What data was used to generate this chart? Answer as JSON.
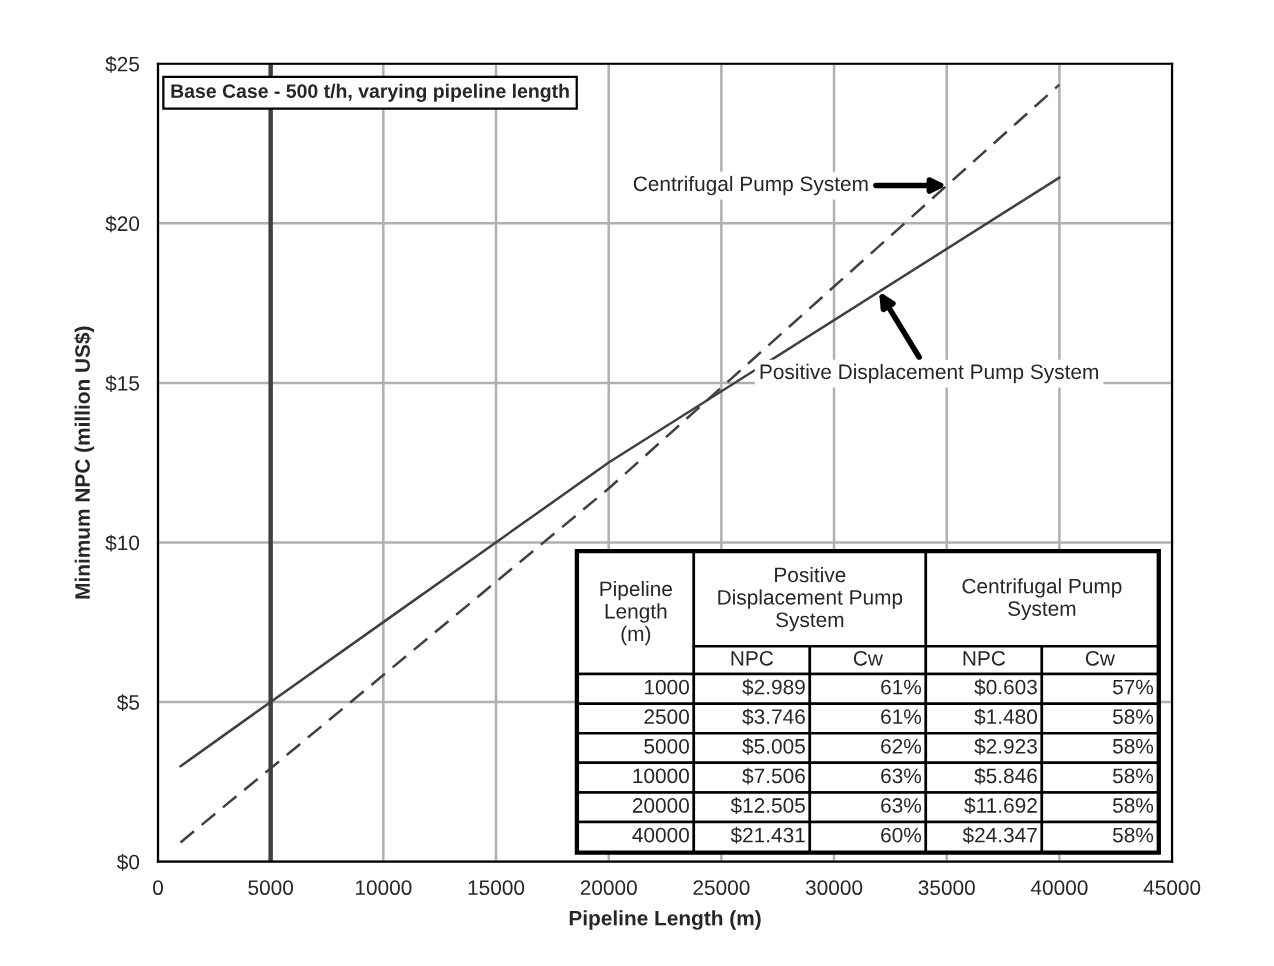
{
  "chart_data": {
    "type": "line",
    "xlabel": "Pipeline Length (m)",
    "ylabel": "Minimum NPC (million US$)",
    "x": [
      1000,
      2500,
      5000,
      10000,
      20000,
      40000
    ],
    "series": [
      {
        "name": "Positive Displacement Pump System",
        "color": "#404040",
        "line_style": "solid",
        "values": [
          2.989,
          3.746,
          5.005,
          7.506,
          12.505,
          21.431
        ]
      },
      {
        "name": "Centrifugal Pump System",
        "color": "#404040",
        "line_style": "dashed",
        "values": [
          0.603,
          1.48,
          2.923,
          5.846,
          11.692,
          24.347
        ]
      }
    ],
    "xlim": [
      0,
      45000
    ],
    "xticks": [
      0,
      5000,
      10000,
      15000,
      20000,
      25000,
      30000,
      35000,
      40000,
      45000
    ],
    "ylim": [
      0,
      25
    ],
    "yticks": [
      {
        "value": 0,
        "label": "$0"
      },
      {
        "value": 5,
        "label": "$5"
      },
      {
        "value": 10,
        "label": "$10"
      },
      {
        "value": 15,
        "label": "$15"
      },
      {
        "value": 20,
        "label": "$20"
      },
      {
        "value": 25,
        "label": "$25"
      }
    ],
    "grid": true,
    "legend": false,
    "marker": "none",
    "ref_lines": [
      {
        "axis": "x",
        "value": 5000,
        "color": "#404040"
      }
    ],
    "annotations": [
      "Base Case - 500 t/h, varying pipeline length",
      "Pipeline Length (m)",
      "Positive Displacement Pump System",
      "Centrifugal Pump System",
      "NPC",
      "Cw",
      "NPC",
      "Cw",
      "1000",
      "$2.989",
      "61%",
      "$0.603",
      "57%",
      "2500",
      "$3.746",
      "61%",
      "$1.480",
      "58%",
      "5000",
      "$5.005",
      "62%",
      "$2.923",
      "58%",
      "10000",
      "$7.506",
      "63%",
      "$5.846",
      "58%",
      "20000",
      "$12.505",
      "63%",
      "$11.692",
      "58%",
      "40000",
      "$21.431",
      "60%",
      "$24.347",
      "58%"
    ]
  }
}
